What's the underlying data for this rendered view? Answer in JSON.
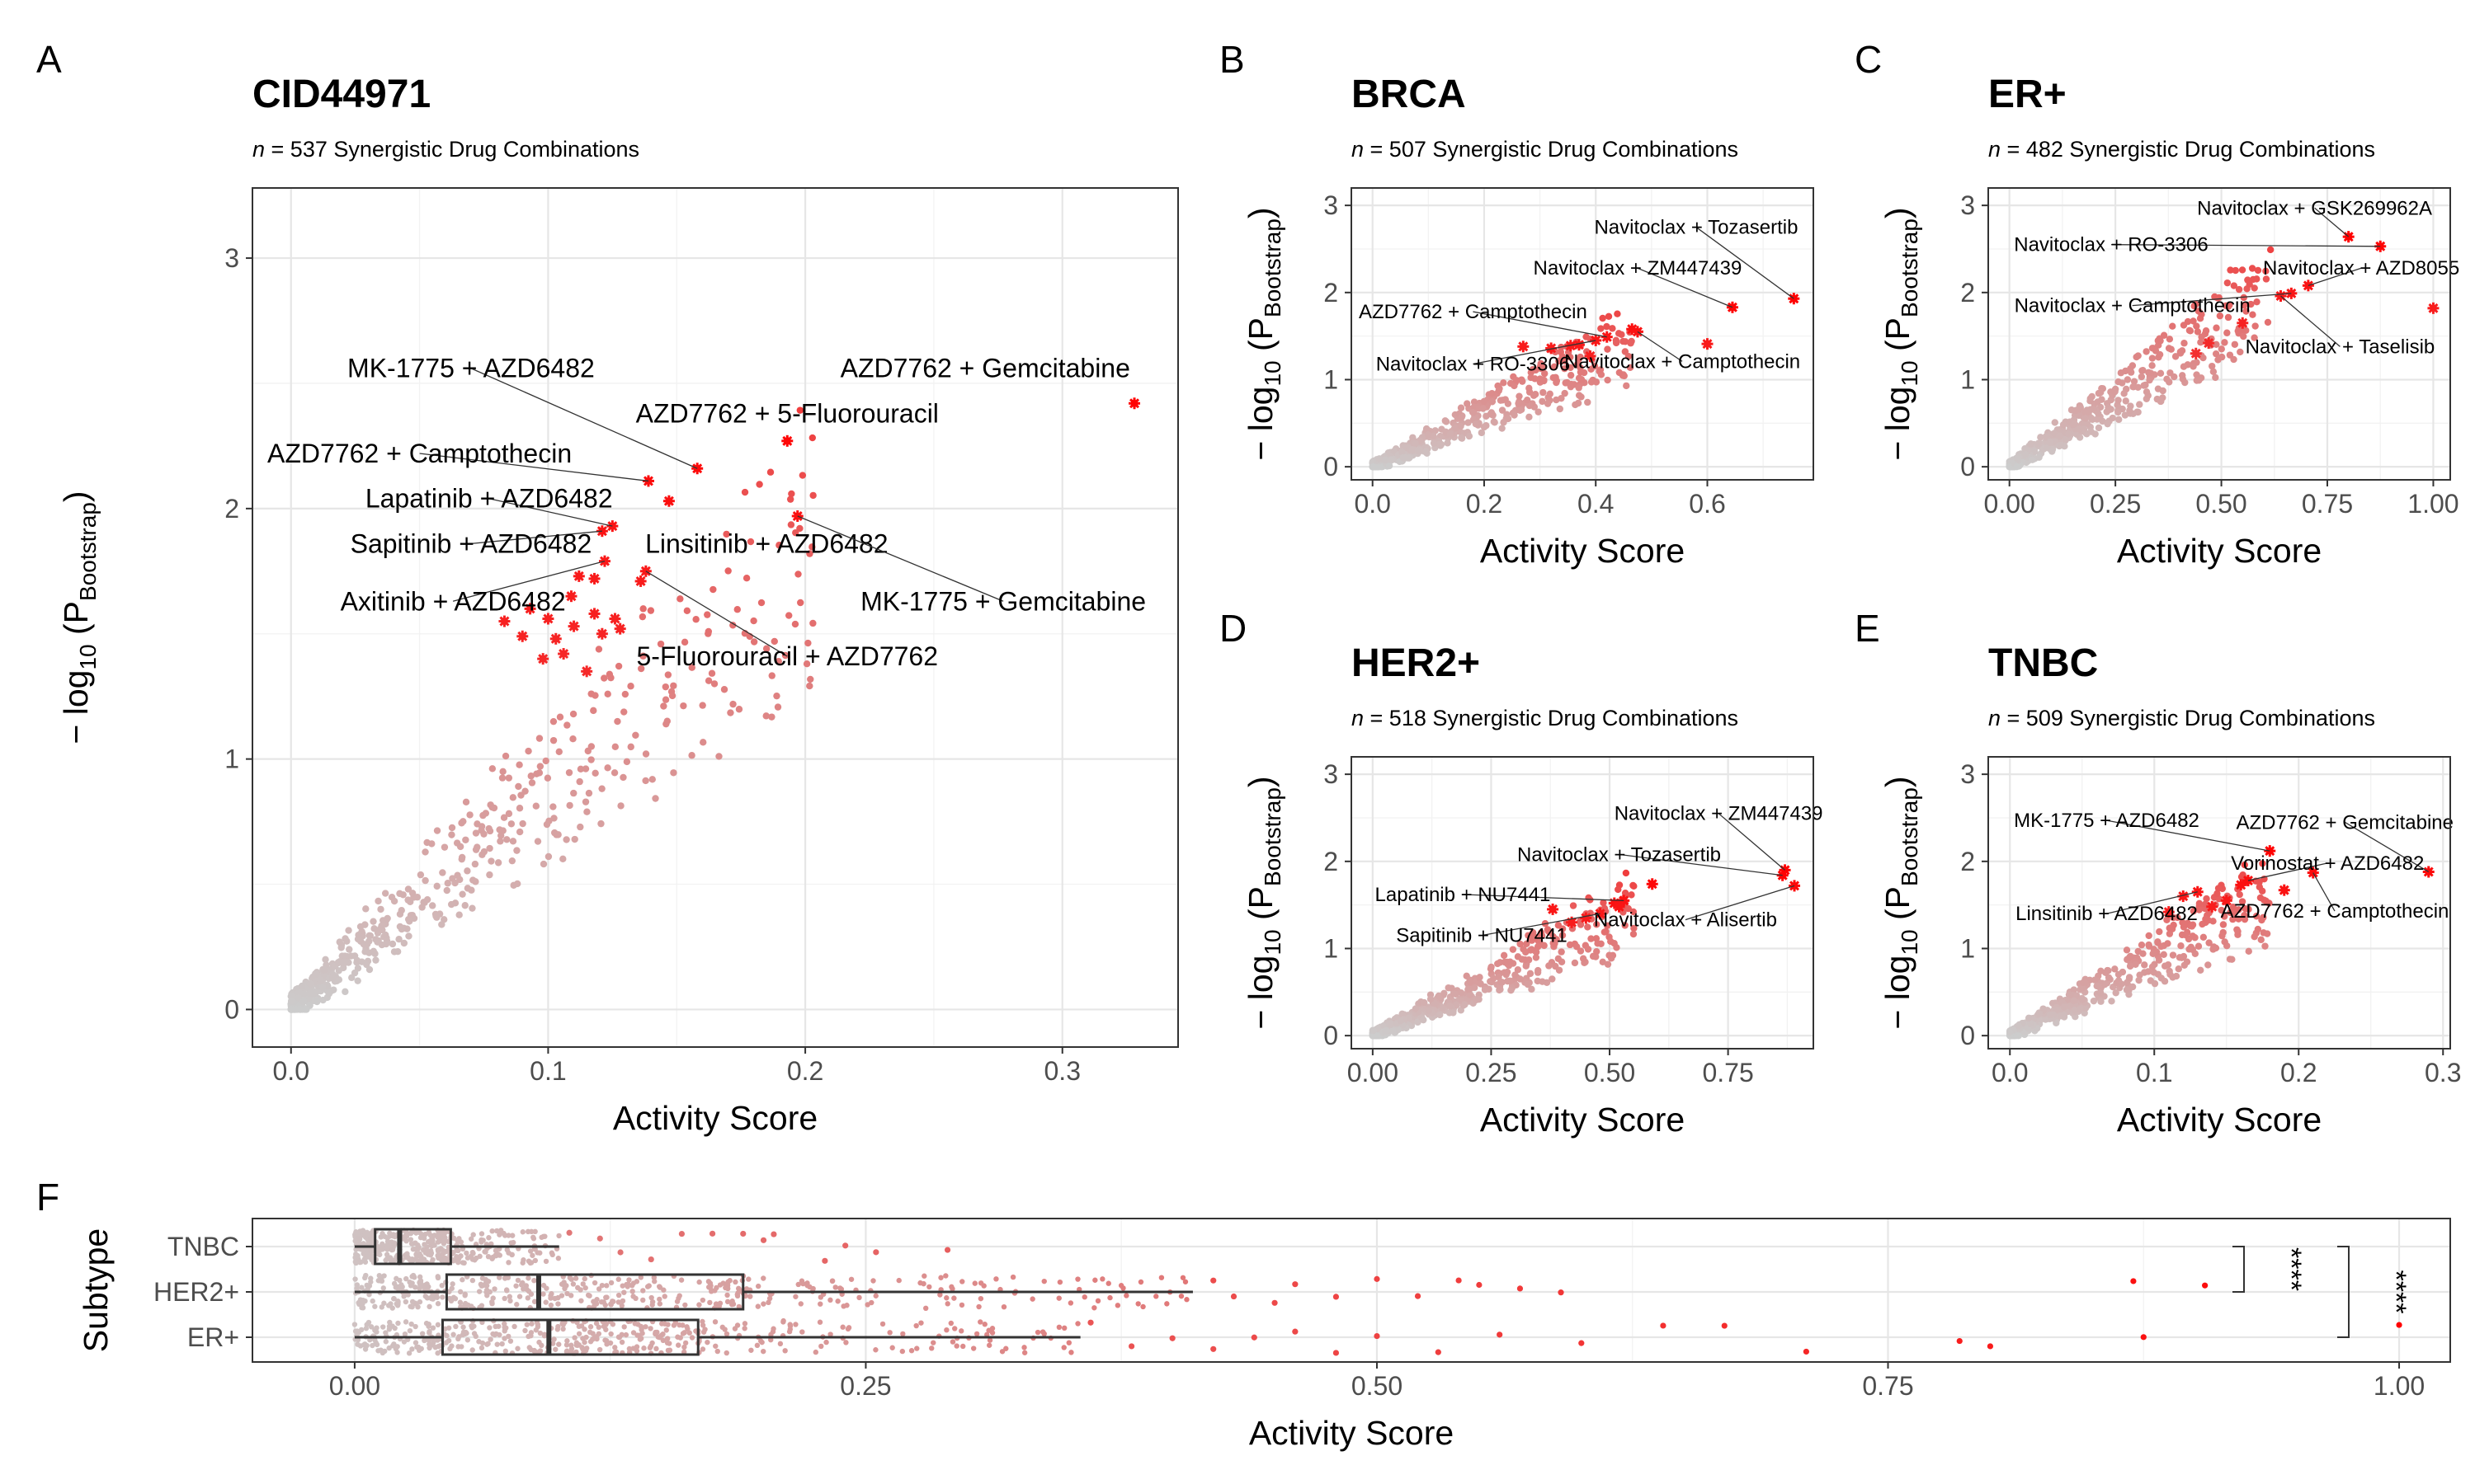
{
  "colors": {
    "low": "#cccccc",
    "high": "#ff0000",
    "grid": "#e6e6e6",
    "frame": "#333333"
  },
  "chart_data": [
    {
      "panel": "A",
      "type": "scatter",
      "title": "CID44971",
      "subtitle_n": "n",
      "subtitle_rest": " = 537 Synergistic Drug Combinations",
      "xlabel": "Activity Score",
      "ylabel_main": "− log",
      "ylabel_sub": "10",
      "ylabel_p": "(P",
      "ylabel_psub": "Bootstrap",
      "ylabel_close": ")",
      "xlim": [
        -0.015,
        0.345
      ],
      "ylim": [
        -0.15,
        3.28
      ],
      "xticks": [
        0,
        0.1,
        0.2,
        0.3
      ],
      "xtick_labels": [
        "0.0",
        "0.1",
        "0.2",
        "0.3"
      ],
      "yticks": [
        0,
        1,
        2,
        3
      ],
      "ytick_labels": [
        "0",
        "1",
        "2",
        "3"
      ],
      "n": 537,
      "highlights": [
        {
          "x": 0.328,
          "y": 2.42
        },
        {
          "x": 0.193,
          "y": 2.27
        },
        {
          "x": 0.158,
          "y": 2.16
        },
        {
          "x": 0.139,
          "y": 2.11
        },
        {
          "x": 0.147,
          "y": 2.03
        },
        {
          "x": 0.197,
          "y": 1.97
        },
        {
          "x": 0.125,
          "y": 1.93
        },
        {
          "x": 0.121,
          "y": 1.91
        },
        {
          "x": 0.138,
          "y": 1.75
        },
        {
          "x": 0.136,
          "y": 1.71
        },
        {
          "x": 0.122,
          "y": 1.79
        },
        {
          "x": 0.118,
          "y": 1.72
        },
        {
          "x": 0.112,
          "y": 1.73
        },
        {
          "x": 0.118,
          "y": 1.58
        },
        {
          "x": 0.126,
          "y": 1.56
        },
        {
          "x": 0.109,
          "y": 1.65
        },
        {
          "x": 0.121,
          "y": 1.5
        },
        {
          "x": 0.11,
          "y": 1.53
        },
        {
          "x": 0.1,
          "y": 1.56
        },
        {
          "x": 0.103,
          "y": 1.48
        },
        {
          "x": 0.093,
          "y": 1.6
        },
        {
          "x": 0.09,
          "y": 1.49
        },
        {
          "x": 0.083,
          "y": 1.55
        },
        {
          "x": 0.098,
          "y": 1.4
        },
        {
          "x": 0.106,
          "y": 1.42
        },
        {
          "x": 0.115,
          "y": 1.35
        },
        {
          "x": 0.128,
          "y": 1.52
        }
      ],
      "labels": [
        {
          "text": "AZD7762 + Gemcitabine",
          "x": 0.328,
          "y": 2.42,
          "lx": 0.27,
          "ly": 2.56,
          "anchor": "middle",
          "lead": false
        },
        {
          "text": "MK-1775 + AZD6482",
          "x": 0.158,
          "y": 2.16,
          "lx": 0.07,
          "ly": 2.56,
          "anchor": "middle",
          "lead": true
        },
        {
          "text": "AZD7762 + 5-Fluorouracil",
          "x": 0.193,
          "y": 2.27,
          "lx": 0.193,
          "ly": 2.38,
          "anchor": "middle",
          "lead": false
        },
        {
          "text": "AZD7762 + Camptothecin",
          "x": 0.139,
          "y": 2.11,
          "lx": 0.05,
          "ly": 2.22,
          "anchor": "middle",
          "lead": true
        },
        {
          "text": "Lapatinib + AZD6482",
          "x": 0.125,
          "y": 1.93,
          "lx": 0.077,
          "ly": 2.04,
          "anchor": "middle",
          "lead": true
        },
        {
          "text": "Linsitinib + AZD6482",
          "x": 0.197,
          "y": 1.97,
          "lx": 0.185,
          "ly": 1.86,
          "anchor": "middle",
          "lead": false
        },
        {
          "text": "Sapitinib + AZD6482",
          "x": 0.121,
          "y": 1.91,
          "lx": 0.07,
          "ly": 1.86,
          "anchor": "middle",
          "lead": true
        },
        {
          "text": "MK-1775 + Gemcitabine",
          "x": 0.197,
          "y": 1.97,
          "lx": 0.277,
          "ly": 1.63,
          "anchor": "middle",
          "lead": true
        },
        {
          "text": "Axitinib + AZD6482",
          "x": 0.122,
          "y": 1.79,
          "lx": 0.063,
          "ly": 1.63,
          "anchor": "middle",
          "lead": true
        },
        {
          "text": "5-Fluorouracil + AZD7762",
          "x": 0.138,
          "y": 1.75,
          "lx": 0.193,
          "ly": 1.41,
          "anchor": "middle",
          "lead": true
        }
      ]
    },
    {
      "panel": "B",
      "type": "scatter",
      "title": "BRCA",
      "subtitle_n": "n",
      "subtitle_rest": " = 507 Synergistic Drug Combinations",
      "xlabel": "Activity Score",
      "ylabel_main": "− log",
      "ylabel_sub": "10",
      "ylabel_p": "(P",
      "ylabel_psub": "Bootstrap",
      "ylabel_close": ")",
      "xlim": [
        -0.038,
        0.79
      ],
      "ylim": [
        -0.15,
        3.2
      ],
      "xticks": [
        0,
        0.2,
        0.4,
        0.6
      ],
      "xtick_labels": [
        "0.0",
        "0.2",
        "0.4",
        "0.6"
      ],
      "yticks": [
        0,
        1,
        2,
        3
      ],
      "ytick_labels": [
        "0",
        "1",
        "2",
        "3"
      ],
      "n": 507,
      "highlights": [
        {
          "x": 0.755,
          "y": 1.93
        },
        {
          "x": 0.645,
          "y": 1.83
        },
        {
          "x": 0.475,
          "y": 1.55
        },
        {
          "x": 0.465,
          "y": 1.58
        },
        {
          "x": 0.42,
          "y": 1.49
        },
        {
          "x": 0.4,
          "y": 1.45
        },
        {
          "x": 0.37,
          "y": 1.4
        },
        {
          "x": 0.355,
          "y": 1.39
        },
        {
          "x": 0.32,
          "y": 1.36
        },
        {
          "x": 0.27,
          "y": 1.38
        },
        {
          "x": 0.6,
          "y": 1.41
        },
        {
          "x": 0.39,
          "y": 1.27
        }
      ],
      "labels": [
        {
          "text": "Navitoclax + Tozasertib",
          "x": 0.755,
          "y": 1.93,
          "lx": 0.58,
          "ly": 2.75,
          "anchor": "middle",
          "lead": true
        },
        {
          "text": "Navitoclax + ZM447439",
          "x": 0.645,
          "y": 1.83,
          "lx": 0.475,
          "ly": 2.28,
          "anchor": "middle",
          "lead": true
        },
        {
          "text": "AZD7762 + Camptothecin",
          "x": 0.42,
          "y": 1.49,
          "lx": 0.18,
          "ly": 1.78,
          "anchor": "middle",
          "lead": true
        },
        {
          "text": "Navitoclax + RO-3306",
          "x": 0.4,
          "y": 1.45,
          "lx": 0.18,
          "ly": 1.18,
          "anchor": "middle",
          "lead": true
        },
        {
          "text": "Navitoclax + Camptothecin",
          "x": 0.475,
          "y": 1.55,
          "lx": 0.555,
          "ly": 1.21,
          "anchor": "middle",
          "lead": true
        }
      ]
    },
    {
      "panel": "C",
      "type": "scatter",
      "title": "ER+",
      "subtitle_n": "n",
      "subtitle_rest": " = 482 Synergistic Drug Combinations",
      "xlabel": "Activity Score",
      "ylabel_main": "− log",
      "ylabel_sub": "10",
      "ylabel_p": "(P",
      "ylabel_psub": "Bootstrap",
      "ylabel_close": ")",
      "xlim": [
        -0.05,
        1.04
      ],
      "ylim": [
        -0.15,
        3.2
      ],
      "xticks": [
        0,
        0.25,
        0.5,
        0.75,
        1
      ],
      "xtick_labels": [
        "0.00",
        "0.25",
        "0.50",
        "0.75",
        "1.00"
      ],
      "yticks": [
        0,
        1,
        2,
        3
      ],
      "ytick_labels": [
        "0",
        "1",
        "2",
        "3"
      ],
      "n": 482,
      "highlights": [
        {
          "x": 0.8,
          "y": 2.64
        },
        {
          "x": 0.875,
          "y": 2.53
        },
        {
          "x": 0.705,
          "y": 2.08
        },
        {
          "x": 0.665,
          "y": 1.99
        },
        {
          "x": 0.64,
          "y": 1.96
        },
        {
          "x": 1.0,
          "y": 1.82
        },
        {
          "x": 0.55,
          "y": 1.65
        },
        {
          "x": 0.47,
          "y": 1.42
        },
        {
          "x": 0.44,
          "y": 1.3
        }
      ],
      "labels": [
        {
          "text": "Navitoclax + GSK269962A",
          "x": 0.8,
          "y": 2.64,
          "lx": 0.72,
          "ly": 2.97,
          "anchor": "middle",
          "lead": true
        },
        {
          "text": "Navitoclax + RO-3306",
          "x": 0.875,
          "y": 2.53,
          "lx": 0.24,
          "ly": 2.55,
          "anchor": "middle",
          "lead": true
        },
        {
          "text": "Navitoclax + AZD8055",
          "x": 0.705,
          "y": 2.08,
          "lx": 0.83,
          "ly": 2.28,
          "anchor": "middle",
          "lead": true
        },
        {
          "text": "Navitoclax + Camptothecin",
          "x": 0.665,
          "y": 1.99,
          "lx": 0.29,
          "ly": 1.85,
          "anchor": "middle",
          "lead": true
        },
        {
          "text": "Navitoclax + Taselisib",
          "x": 0.64,
          "y": 1.96,
          "lx": 0.78,
          "ly": 1.38,
          "anchor": "middle",
          "lead": true
        }
      ]
    },
    {
      "panel": "D",
      "type": "scatter",
      "title": "HER2+",
      "subtitle_n": "n",
      "subtitle_rest": " = 518 Synergistic Drug Combinations",
      "xlabel": "Activity Score",
      "ylabel_main": "− log",
      "ylabel_sub": "10",
      "ylabel_p": "(P",
      "ylabel_psub": "Bootstrap",
      "ylabel_close": ")",
      "xlim": [
        -0.045,
        0.93
      ],
      "ylim": [
        -0.15,
        3.2
      ],
      "xticks": [
        0,
        0.25,
        0.5,
        0.75
      ],
      "xtick_labels": [
        "0.00",
        "0.25",
        "0.50",
        "0.75"
      ],
      "yticks": [
        0,
        1,
        2,
        3
      ],
      "ytick_labels": [
        "0",
        "1",
        "2",
        "3"
      ],
      "n": 518,
      "highlights": [
        {
          "x": 0.87,
          "y": 1.9
        },
        {
          "x": 0.865,
          "y": 1.84
        },
        {
          "x": 0.89,
          "y": 1.72
        },
        {
          "x": 0.59,
          "y": 1.74
        },
        {
          "x": 0.53,
          "y": 1.55
        },
        {
          "x": 0.51,
          "y": 1.52
        },
        {
          "x": 0.52,
          "y": 1.48
        },
        {
          "x": 0.48,
          "y": 1.4
        },
        {
          "x": 0.45,
          "y": 1.35
        },
        {
          "x": 0.38,
          "y": 1.45
        },
        {
          "x": 0.42,
          "y": 1.3
        }
      ],
      "labels": [
        {
          "text": "Navitoclax + ZM447439",
          "x": 0.87,
          "y": 1.9,
          "lx": 0.73,
          "ly": 2.55,
          "anchor": "middle",
          "lead": true
        },
        {
          "text": "Navitoclax + Tozasertib",
          "x": 0.865,
          "y": 1.84,
          "lx": 0.52,
          "ly": 2.08,
          "anchor": "middle",
          "lead": true
        },
        {
          "text": "Lapatinib + NU7441",
          "x": 0.53,
          "y": 1.55,
          "lx": 0.19,
          "ly": 1.62,
          "anchor": "middle",
          "lead": true
        },
        {
          "text": "Navitoclax + Alisertib",
          "x": 0.89,
          "y": 1.72,
          "lx": 0.66,
          "ly": 1.33,
          "anchor": "middle",
          "lead": true
        },
        {
          "text": "Sapitinib + NU7441",
          "x": 0.48,
          "y": 1.4,
          "lx": 0.23,
          "ly": 1.15,
          "anchor": "middle",
          "lead": true
        }
      ]
    },
    {
      "panel": "E",
      "type": "scatter",
      "title": "TNBC",
      "subtitle_n": "n",
      "subtitle_rest": " = 509 Synergistic Drug Combinations",
      "xlabel": "Activity Score",
      "ylabel_main": "− log",
      "ylabel_sub": "10",
      "ylabel_p": "(P",
      "ylabel_psub": "Bootstrap",
      "ylabel_close": ")",
      "xlim": [
        -0.015,
        0.305
      ],
      "ylim": [
        -0.15,
        3.2
      ],
      "xticks": [
        0,
        0.1,
        0.2,
        0.3
      ],
      "xtick_labels": [
        "0.0",
        "0.1",
        "0.2",
        "0.3"
      ],
      "yticks": [
        0,
        1,
        2,
        3
      ],
      "ytick_labels": [
        "0",
        "1",
        "2",
        "3"
      ],
      "n": 509,
      "highlights": [
        {
          "x": 0.29,
          "y": 1.88
        },
        {
          "x": 0.18,
          "y": 2.12
        },
        {
          "x": 0.21,
          "y": 1.87
        },
        {
          "x": 0.165,
          "y": 1.78
        },
        {
          "x": 0.16,
          "y": 1.73
        },
        {
          "x": 0.19,
          "y": 1.67
        },
        {
          "x": 0.13,
          "y": 1.65
        },
        {
          "x": 0.12,
          "y": 1.6
        },
        {
          "x": 0.15,
          "y": 1.55
        },
        {
          "x": 0.14,
          "y": 1.48
        },
        {
          "x": 0.11,
          "y": 1.42
        }
      ],
      "labels": [
        {
          "text": "AZD7762 + Gemcitabine",
          "x": 0.29,
          "y": 1.88,
          "lx": 0.232,
          "ly": 2.45,
          "anchor": "middle",
          "lead": true
        },
        {
          "text": "MK-1775 + AZD6482",
          "x": 0.18,
          "y": 2.12,
          "lx": 0.067,
          "ly": 2.47,
          "anchor": "middle",
          "lead": true
        },
        {
          "text": "Vorinostat + AZD6482",
          "x": 0.165,
          "y": 1.78,
          "lx": 0.22,
          "ly": 1.98,
          "anchor": "middle",
          "lead": true
        },
        {
          "text": "Linsitinib + AZD6482",
          "x": 0.13,
          "y": 1.65,
          "lx": 0.067,
          "ly": 1.4,
          "anchor": "middle",
          "lead": true
        },
        {
          "text": "AZD7762 + Camptothecin",
          "x": 0.21,
          "y": 1.87,
          "lx": 0.225,
          "ly": 1.43,
          "anchor": "middle",
          "lead": true
        }
      ]
    },
    {
      "panel": "F",
      "type": "box",
      "xlabel": "Activity Score",
      "ylabel": "Subtype",
      "xlim": [
        -0.05,
        1.025
      ],
      "xticks": [
        0,
        0.25,
        0.5,
        0.75,
        1
      ],
      "xtick_labels": [
        "0.00",
        "0.25",
        "0.50",
        "0.75",
        "1.00"
      ],
      "categories": [
        "TNBC",
        "HER2+",
        "ER+"
      ],
      "boxes": [
        {
          "name": "TNBC",
          "min": 0.0,
          "q1": 0.01,
          "median": 0.022,
          "q3": 0.047,
          "max": 0.1
        },
        {
          "name": "HER2+",
          "min": 0.0,
          "q1": 0.045,
          "median": 0.09,
          "q3": 0.19,
          "max": 0.41
        },
        {
          "name": "ER+",
          "min": 0.0,
          "q1": 0.043,
          "median": 0.095,
          "q3": 0.168,
          "max": 0.355
        }
      ],
      "outliers": {
        "TNBC": [
          0.105,
          0.12,
          0.13,
          0.145,
          0.16,
          0.175,
          0.19,
          0.2,
          0.205,
          0.23,
          0.24,
          0.255,
          0.29
        ],
        "HER2+": [
          0.42,
          0.43,
          0.45,
          0.46,
          0.48,
          0.5,
          0.52,
          0.54,
          0.55,
          0.57,
          0.59,
          0.87,
          0.905
        ],
        "ER+": [
          0.36,
          0.38,
          0.4,
          0.42,
          0.44,
          0.46,
          0.48,
          0.5,
          0.53,
          0.56,
          0.6,
          0.64,
          0.67,
          0.71,
          0.785,
          0.8,
          0.875,
          1.0
        ]
      },
      "significance": [
        {
          "groups": [
            "TNBC",
            "HER2+"
          ],
          "label": "****"
        },
        {
          "groups": [
            "TNBC",
            "ER+"
          ],
          "label": "****"
        }
      ]
    }
  ]
}
